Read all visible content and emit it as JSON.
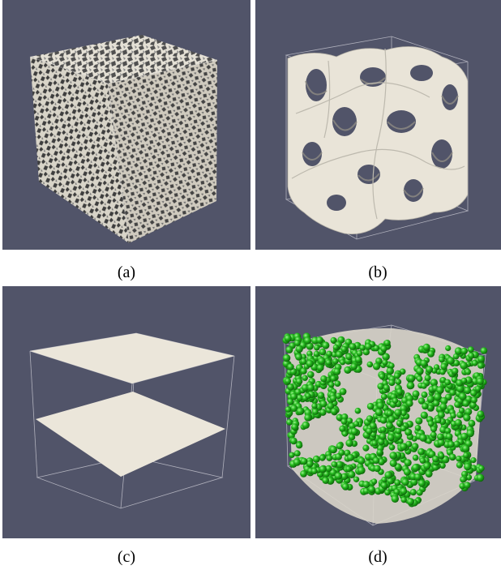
{
  "panels": [
    {
      "id": "a",
      "caption": "(a)",
      "content": "noisy-cube"
    },
    {
      "id": "b",
      "caption": "(b)",
      "content": "gyroid-surface"
    },
    {
      "id": "c",
      "caption": "(c)",
      "content": "two-planes"
    },
    {
      "id": "d",
      "caption": "(d)",
      "content": "sphere-particles"
    }
  ],
  "colors": {
    "background": "#515469",
    "surface": "#ebe6da",
    "surface_shade": "#9a978f",
    "noise_dark": "#4a4a4a",
    "particle": "#22b51c",
    "outline": "#c9c9d2"
  }
}
